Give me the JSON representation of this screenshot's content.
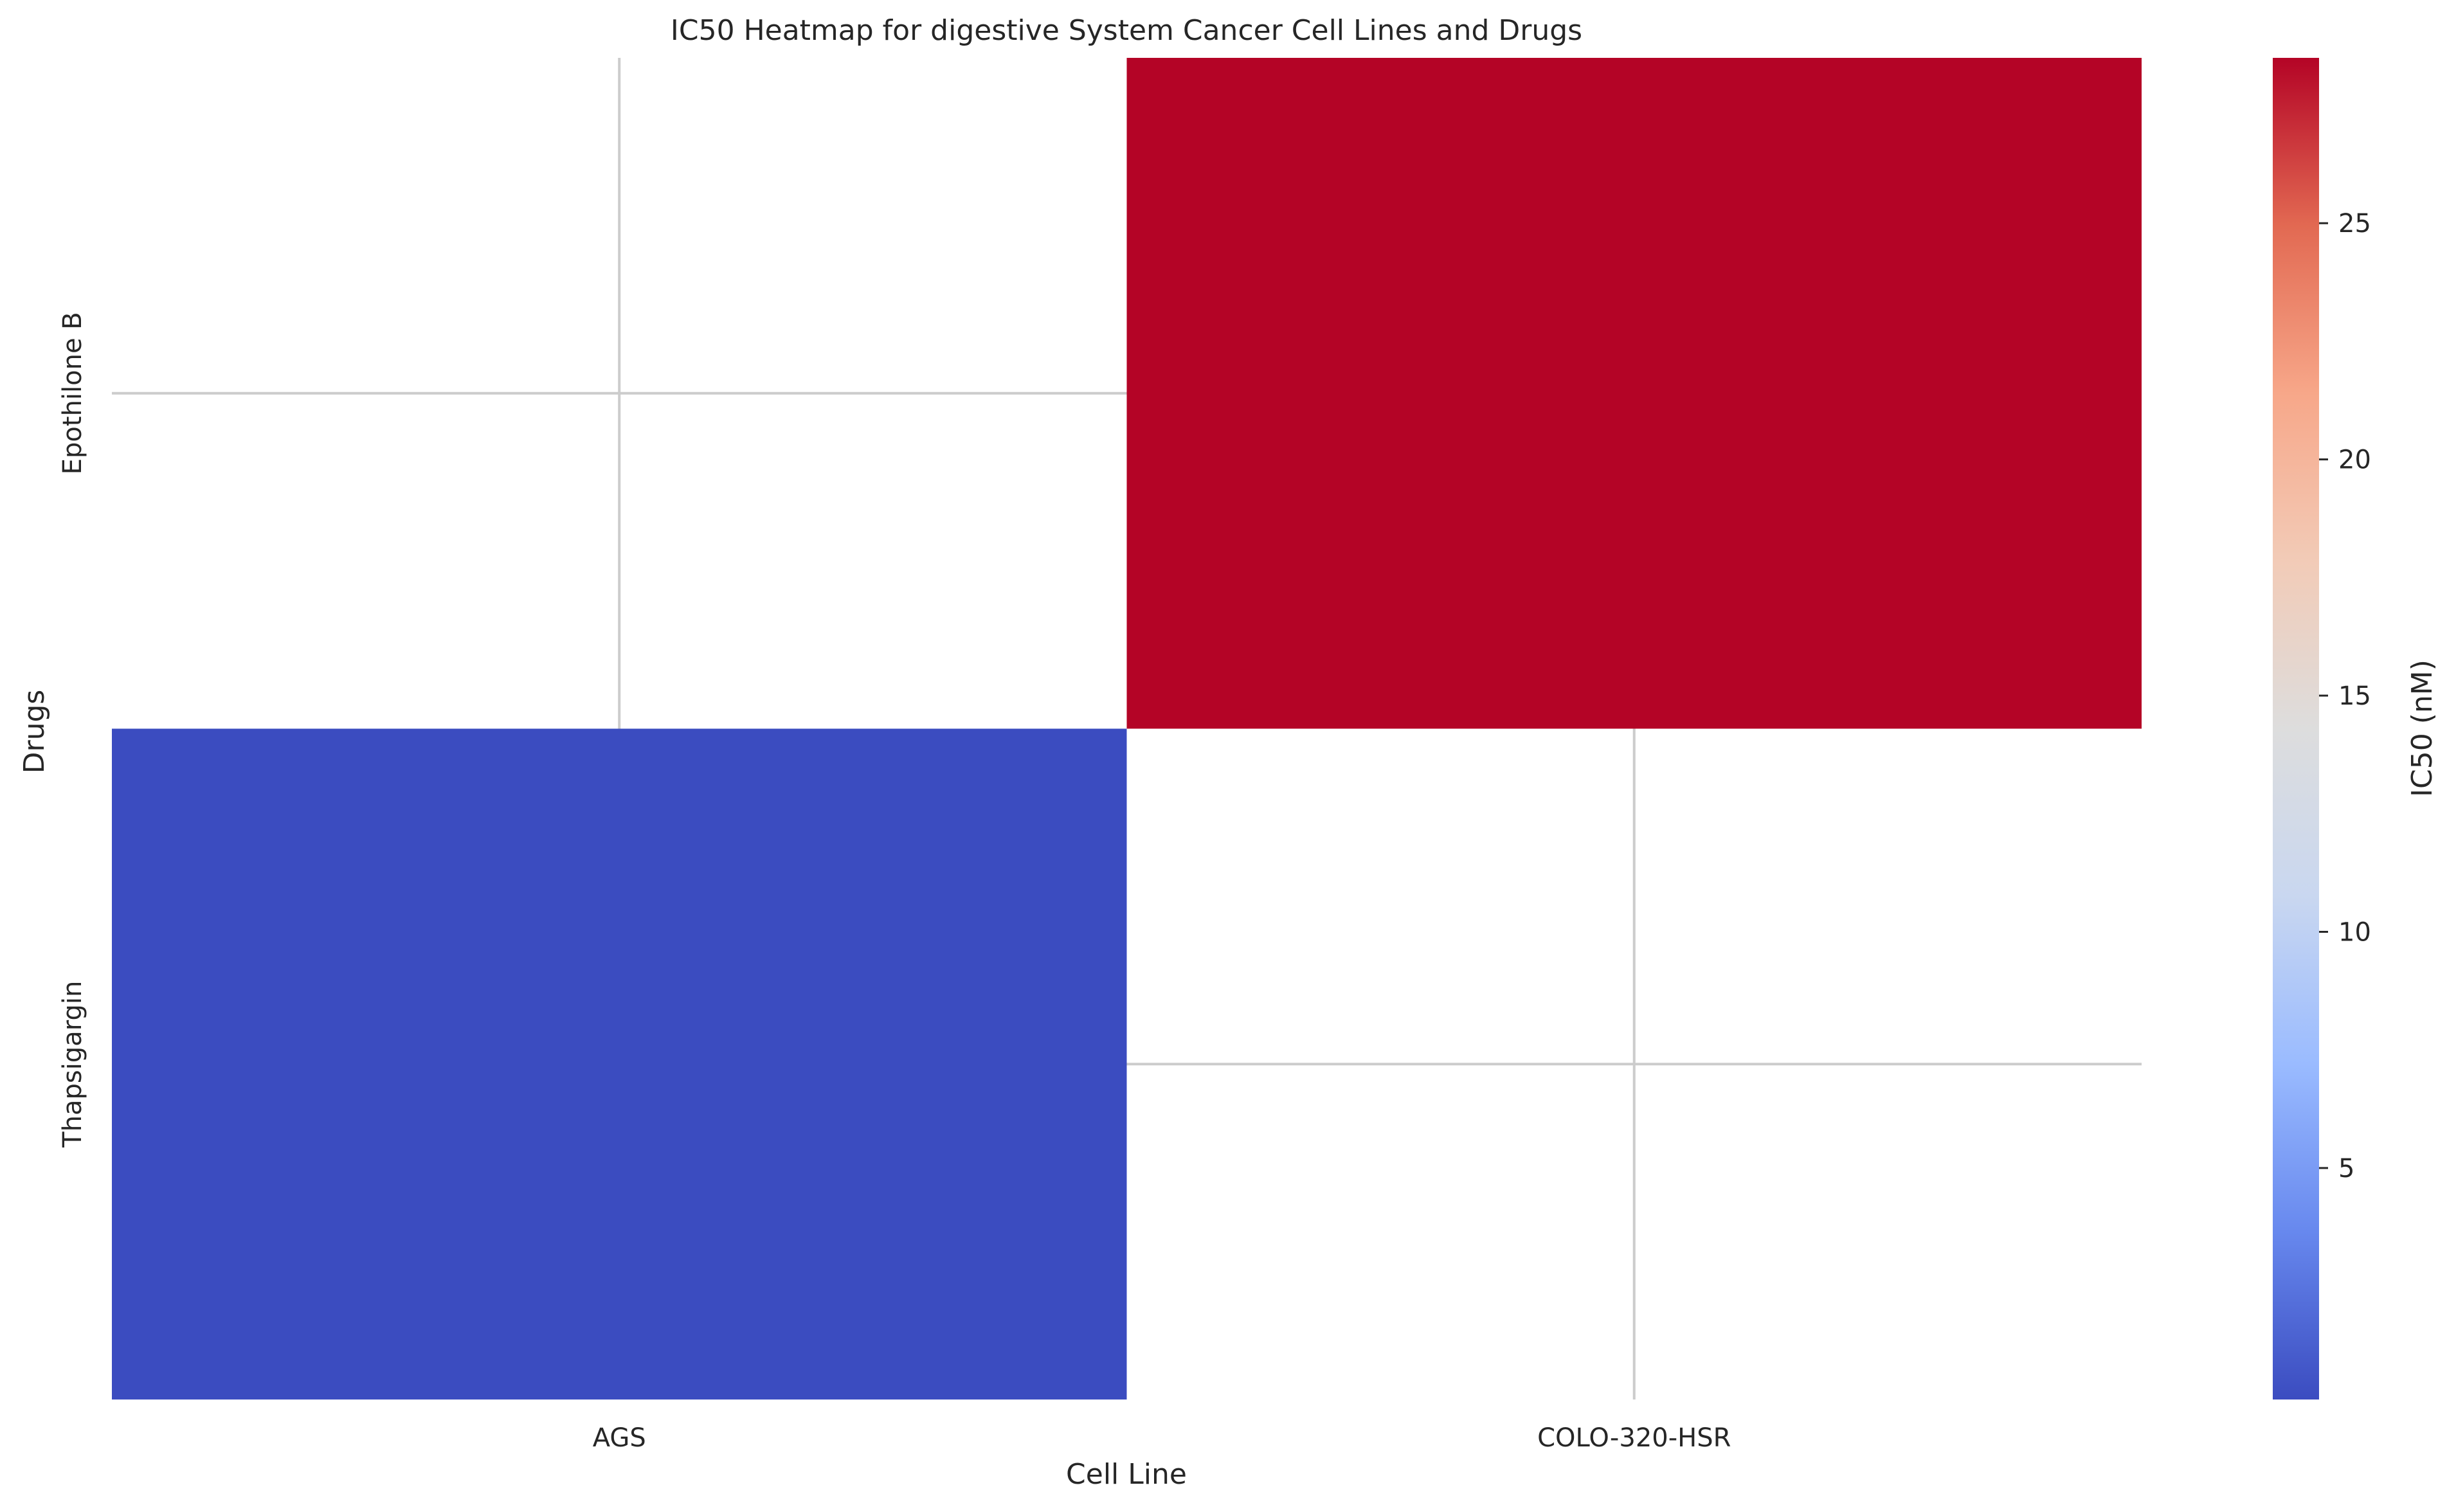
{
  "chart_data": {
    "type": "heatmap",
    "title": "IC50 Heatmap for digestive System Cancer Cell Lines and Drugs",
    "xlabel": "Cell Line",
    "ylabel": "Drugs",
    "x_categories": [
      "AGS",
      "COLO-320-HSR"
    ],
    "y_categories": [
      "Epothilone B",
      "Thapsigargin"
    ],
    "values": [
      [
        null,
        28.5
      ],
      [
        0.1,
        null
      ]
    ],
    "colorbar": {
      "label": "IC50 (nM)",
      "colormap": "coolwarm",
      "range": [
        0.1,
        28.5
      ],
      "ticks": [
        5,
        10,
        15,
        20,
        25
      ]
    },
    "grid": true,
    "missing_cells": "blank"
  },
  "colors": {
    "background": "#ffffff",
    "grid": "#cccccc",
    "text": "#262626",
    "colormap_stops": [
      "#3b4cc0",
      "#6788ee",
      "#9abbff",
      "#c9d7f0",
      "#dddddd",
      "#f2cbb7",
      "#f7a789",
      "#e26952",
      "#b40426"
    ]
  }
}
